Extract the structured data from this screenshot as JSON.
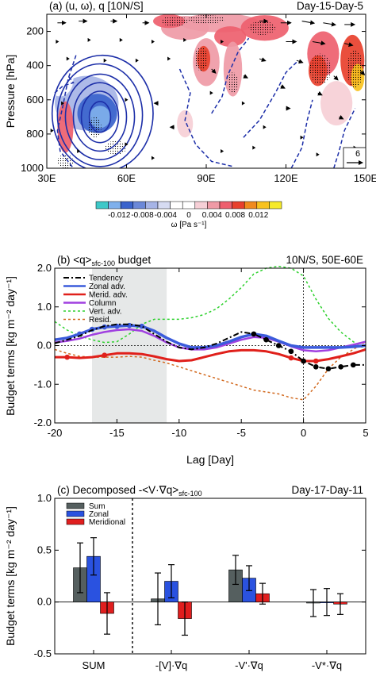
{
  "chart_data": [
    {
      "type": "contour",
      "title": "(a) (u, ω), q [10N/S]",
      "subtitle": "Day-15-Day-5",
      "xlabel": "",
      "ylabel": "Pressure [hPa]",
      "xlim": [
        30,
        150
      ],
      "ylim": [
        1000,
        100
      ],
      "xticks": [
        "30E",
        "60E",
        "90E",
        "120E",
        "150E"
      ],
      "xtick_values": [
        30,
        60,
        90,
        120,
        150
      ],
      "yticks": [
        "200",
        "400",
        "600",
        "800",
        "1000"
      ],
      "ytick_values": [
        200,
        400,
        600,
        800,
        1000
      ],
      "colorbar": {
        "label": "ω [Pa s⁻¹]",
        "tick_labels": [
          "-0.012",
          "-0.008",
          "-0.004",
          "0",
          "0.004",
          "0.008",
          "0.012"
        ],
        "colors": [
          "#3ec8c8",
          "#7fb0ec",
          "#3a63cc",
          "#6b88d8",
          "#a6b4e6",
          "#d6dbf2",
          "#ffffff",
          "#ffffff",
          "#f6cfd6",
          "#ef9aa6",
          "#ee5f6e",
          "#e8402d",
          "#f08a1e",
          "#f8c21e",
          "#f6ea2a"
        ]
      },
      "vector_reference": "6",
      "omega_cells": [
        {
          "lon": 45,
          "p": 620,
          "w_lon": 24,
          "h_p": 320,
          "value": -0.006
        },
        {
          "lon": 49,
          "p": 680,
          "w_lon": 15,
          "h_p": 230,
          "value": -0.009
        },
        {
          "lon": 50,
          "p": 700,
          "w_lon": 8,
          "h_p": 130,
          "value": -0.011
        },
        {
          "lon": 70,
          "p": 560,
          "w_lon": 16,
          "h_p": 260,
          "value": -0.002
        },
        {
          "lon": 35,
          "p": 480,
          "w_lon": 10,
          "h_p": 200,
          "value": -0.002
        },
        {
          "lon": 95,
          "p": 150,
          "w_lon": 30,
          "h_p": 110,
          "value": 0.005
        },
        {
          "lon": 82,
          "p": 180,
          "w_lon": 18,
          "h_p": 140,
          "value": 0.004
        },
        {
          "lon": 76,
          "p": 140,
          "w_lon": 12,
          "h_p": 80,
          "value": 0.006
        },
        {
          "lon": 99,
          "p": 230,
          "w_lon": 12,
          "h_p": 120,
          "value": 0.007
        },
        {
          "lon": 112,
          "p": 180,
          "w_lon": 18,
          "h_p": 150,
          "value": 0.006
        },
        {
          "lon": 90,
          "p": 380,
          "w_lon": 10,
          "h_p": 280,
          "value": 0.005
        },
        {
          "lon": 89,
          "p": 360,
          "w_lon": 5,
          "h_p": 150,
          "value": 0.009
        },
        {
          "lon": 100,
          "p": 420,
          "w_lon": 7,
          "h_p": 320,
          "value": 0.004
        },
        {
          "lon": 134,
          "p": 330,
          "w_lon": 12,
          "h_p": 260,
          "value": 0.006
        },
        {
          "lon": 132,
          "p": 430,
          "w_lon": 7,
          "h_p": 180,
          "value": 0.009
        },
        {
          "lon": 145,
          "p": 370,
          "w_lon": 9,
          "h_p": 300,
          "value": 0.008
        },
        {
          "lon": 147,
          "p": 470,
          "w_lon": 5,
          "h_p": 160,
          "value": 0.012
        },
        {
          "lon": 139,
          "p": 620,
          "w_lon": 12,
          "h_p": 260,
          "value": 0.003
        },
        {
          "lon": 37,
          "p": 760,
          "w_lon": 6,
          "h_p": 300,
          "value": 0.006
        },
        {
          "lon": 82,
          "p": 740,
          "w_lon": 6,
          "h_p": 160,
          "value": 0.003
        }
      ],
      "q_contours": [
        {
          "lon": 50,
          "p": 700,
          "r_lon": 4,
          "r_p": 90
        },
        {
          "lon": 50,
          "p": 700,
          "r_lon": 7,
          "r_p": 150
        },
        {
          "lon": 50,
          "p": 700,
          "r_lon": 10,
          "r_p": 200
        },
        {
          "lon": 50,
          "p": 700,
          "r_lon": 13,
          "r_p": 250
        },
        {
          "lon": 50,
          "p": 690,
          "r_lon": 16,
          "r_p": 300
        },
        {
          "lon": 51,
          "p": 680,
          "r_lon": 19,
          "r_p": 340
        }
      ],
      "q_negative_contours": [
        {
          "points": [
            [
              41,
              340
            ],
            [
              38,
              480
            ],
            [
              36,
              640
            ],
            [
              34,
              780
            ],
            [
              35,
              900
            ],
            [
              40,
              1000
            ]
          ]
        },
        {
          "points": [
            [
              33,
              560
            ],
            [
              36,
              520
            ],
            [
              40,
              500
            ],
            [
              38,
              460
            ]
          ]
        },
        {
          "points": [
            [
              80,
              420
            ],
            [
              84,
              560
            ],
            [
              82,
              720
            ],
            [
              86,
              860
            ],
            [
              92,
              960
            ],
            [
              100,
              990
            ]
          ]
        },
        {
          "points": [
            [
              92,
              680
            ],
            [
              96,
              580
            ],
            [
              98,
              460
            ],
            [
              102,
              320
            ],
            [
              106,
              240
            ]
          ]
        },
        {
          "points": [
            [
              104,
              820
            ],
            [
              110,
              720
            ],
            [
              116,
              560
            ],
            [
              120,
              440
            ],
            [
              124,
              380
            ]
          ]
        },
        {
          "points": [
            [
              122,
              1000
            ],
            [
              126,
              880
            ],
            [
              128,
              720
            ],
            [
              130,
              600
            ]
          ]
        },
        {
          "points": [
            [
              138,
              1000
            ],
            [
              140,
              900
            ],
            [
              142,
              780
            ],
            [
              146,
              650
            ]
          ]
        }
      ],
      "wind_vectors": [
        {
          "lon": 34,
          "p": 150,
          "u": 4,
          "w": 0
        },
        {
          "lon": 42,
          "p": 140,
          "u": 4,
          "w": 0
        },
        {
          "lon": 54,
          "p": 140,
          "u": 3,
          "w": 0
        },
        {
          "lon": 66,
          "p": 150,
          "u": 3,
          "w": 0
        },
        {
          "lon": 110,
          "p": 140,
          "u": 4,
          "w": 0
        },
        {
          "lon": 118,
          "p": 150,
          "u": 5,
          "w": 0
        },
        {
          "lon": 126,
          "p": 140,
          "u": 6,
          "w": 1
        },
        {
          "lon": 134,
          "p": 150,
          "u": 6,
          "w": 1
        },
        {
          "lon": 142,
          "p": 160,
          "u": 5,
          "w": 0
        },
        {
          "lon": 120,
          "p": 260,
          "u": 5,
          "w": 0
        },
        {
          "lon": 130,
          "p": 260,
          "u": 6,
          "w": 1
        },
        {
          "lon": 142,
          "p": 270,
          "u": 4,
          "w": 1
        },
        {
          "lon": 110,
          "p": 360,
          "u": 3,
          "w": 1
        },
        {
          "lon": 124,
          "p": 370,
          "u": 3,
          "w": 1
        },
        {
          "lon": 92,
          "p": 420,
          "u": 2,
          "w": 2
        },
        {
          "lon": 104,
          "p": 460,
          "u": 2,
          "w": 1
        },
        {
          "lon": 138,
          "p": 460,
          "u": 2,
          "w": 2
        },
        {
          "lon": 148,
          "p": 430,
          "u": 2,
          "w": 2
        },
        {
          "lon": 118,
          "p": 520,
          "u": 2,
          "w": 1
        },
        {
          "lon": 132,
          "p": 560,
          "u": 2,
          "w": 1
        },
        {
          "lon": 120,
          "p": 650,
          "u": 2,
          "w": 0
        },
        {
          "lon": 140,
          "p": 700,
          "u": 2,
          "w": 1
        },
        {
          "lon": 72,
          "p": 620,
          "u": -2,
          "w": 0
        },
        {
          "lon": 78,
          "p": 760,
          "u": -2,
          "w": 0
        }
      ],
      "wind_marks": [
        {
          "lon": 34,
          "p": 260
        },
        {
          "lon": 46,
          "p": 250
        },
        {
          "lon": 58,
          "p": 250
        },
        {
          "lon": 70,
          "p": 260
        },
        {
          "lon": 82,
          "p": 250
        },
        {
          "lon": 96,
          "p": 260
        },
        {
          "lon": 38,
          "p": 360
        },
        {
          "lon": 52,
          "p": 370
        },
        {
          "lon": 64,
          "p": 370
        },
        {
          "lon": 76,
          "p": 360
        },
        {
          "lon": 36,
          "p": 620
        },
        {
          "lon": 60,
          "p": 600
        },
        {
          "lon": 92,
          "p": 560
        },
        {
          "lon": 104,
          "p": 620
        },
        {
          "lon": 112,
          "p": 760
        },
        {
          "lon": 126,
          "p": 820
        },
        {
          "lon": 60,
          "p": 860
        },
        {
          "lon": 96,
          "p": 900
        },
        {
          "lon": 42,
          "p": 900
        },
        {
          "lon": 70,
          "p": 940
        },
        {
          "lon": 108,
          "p": 880
        },
        {
          "lon": 132,
          "p": 920
        },
        {
          "lon": 146,
          "p": 880
        },
        {
          "lon": 32,
          "p": 780
        }
      ],
      "stipple_regions": [
        {
          "lon": 78,
          "p": 140,
          "w_lon": 10,
          "h_p": 60
        },
        {
          "lon": 90,
          "p": 130,
          "w_lon": 14,
          "h_p": 50
        },
        {
          "lon": 111,
          "p": 180,
          "w_lon": 10,
          "h_p": 80
        },
        {
          "lon": 88,
          "p": 360,
          "w_lon": 5,
          "h_p": 140
        },
        {
          "lon": 133,
          "p": 420,
          "w_lon": 8,
          "h_p": 180
        },
        {
          "lon": 146,
          "p": 420,
          "w_lon": 6,
          "h_p": 220
        },
        {
          "lon": 37,
          "p": 960,
          "w_lon": 6,
          "h_p": 80
        },
        {
          "lon": 48,
          "p": 760,
          "w_lon": 5,
          "h_p": 120
        },
        {
          "lon": 56,
          "p": 880,
          "w_lon": 8,
          "h_p": 80
        },
        {
          "lon": 100,
          "p": 500,
          "w_lon": 4,
          "h_p": 120
        }
      ]
    },
    {
      "type": "line",
      "title": "(b) <q>",
      "title_subscript": "sfc-100",
      "title_suffix": " budget",
      "subtitle": "10N/S, 50E-60E",
      "xlabel": "Lag [Day]",
      "ylabel": "Budget terms [kg m⁻² day⁻¹]",
      "xlim": [
        -20,
        5
      ],
      "ylim": [
        -2.0,
        2.0
      ],
      "xticks": [
        "-20",
        "-15",
        "-10",
        "-5",
        "0",
        "5"
      ],
      "xtick_values": [
        -20,
        -15,
        -10,
        -5,
        0,
        5
      ],
      "yticks": [
        "-2.0",
        "-1.0",
        "0.0",
        "1.0",
        "2.0"
      ],
      "ytick_values": [
        -2,
        -1,
        0,
        1,
        2
      ],
      "shaded_range": [
        -17,
        -11
      ],
      "vertical_line_x": 0,
      "legend_position": "top-left",
      "x": [
        -20,
        -19,
        -18,
        -17,
        -16,
        -15,
        -14,
        -13,
        -12,
        -11,
        -10,
        -9,
        -8,
        -7,
        -6,
        -5,
        -4,
        -3,
        -2,
        -1,
        0,
        1,
        2,
        3,
        4,
        5
      ],
      "series": [
        {
          "name": "Tendency",
          "color": "#000000",
          "dash": "7,3,2,3",
          "width": 2,
          "markers": true,
          "values": [
            0.06,
            0.15,
            0.25,
            0.4,
            0.5,
            0.55,
            0.55,
            0.5,
            0.3,
            0.1,
            -0.05,
            -0.1,
            -0.05,
            0.05,
            0.2,
            0.35,
            0.3,
            0.15,
            0.0,
            -0.15,
            -0.4,
            -0.55,
            -0.6,
            -0.55,
            -0.5,
            -0.5
          ]
        },
        {
          "name": "Zonal adv.",
          "color": "#3b5bdb",
          "dash": "",
          "width": 3.5,
          "markers": true,
          "values": [
            0.15,
            0.2,
            0.3,
            0.42,
            0.48,
            0.5,
            0.52,
            0.5,
            0.38,
            0.2,
            0.05,
            -0.05,
            -0.05,
            0.0,
            0.1,
            0.22,
            0.3,
            0.25,
            0.12,
            0.0,
            -0.05,
            -0.05,
            -0.05,
            -0.05,
            -0.03,
            0.0
          ]
        },
        {
          "name": "Merid. adv.",
          "color": "#e0201b",
          "dash": "",
          "width": 3,
          "markers": true,
          "values": [
            -0.3,
            -0.3,
            -0.32,
            -0.3,
            -0.25,
            -0.2,
            -0.2,
            -0.22,
            -0.28,
            -0.35,
            -0.4,
            -0.38,
            -0.3,
            -0.22,
            -0.15,
            -0.12,
            -0.12,
            -0.15,
            -0.22,
            -0.32,
            -0.4,
            -0.4,
            -0.35,
            -0.28,
            -0.2,
            -0.1
          ]
        },
        {
          "name": "Column",
          "color": "#a040e0",
          "dash": "",
          "width": 2.5,
          "markers": false,
          "values": [
            0.08,
            0.12,
            0.18,
            0.28,
            0.35,
            0.4,
            0.42,
            0.38,
            0.25,
            0.08,
            -0.05,
            -0.1,
            -0.1,
            -0.05,
            0.05,
            0.15,
            0.22,
            0.2,
            0.1,
            -0.02,
            -0.12,
            -0.15,
            -0.12,
            -0.05,
            0.02,
            0.1
          ]
        },
        {
          "name": "Vert. adv.",
          "color": "#2ed12e",
          "dash": "3,3",
          "width": 1.5,
          "markers": false,
          "values": [
            0.62,
            0.4,
            0.25,
            0.15,
            0.08,
            0.1,
            0.3,
            0.55,
            0.68,
            0.68,
            0.68,
            0.72,
            0.8,
            0.95,
            1.2,
            1.5,
            1.85,
            2.0,
            2.05,
            2.0,
            1.8,
            1.2,
            0.7,
            0.35,
            0.1,
            -0.1
          ]
        },
        {
          "name": "Resid.",
          "color": "#d2691e",
          "dash": "3,3",
          "width": 1.5,
          "markers": false,
          "values": [
            -0.1,
            -0.2,
            -0.28,
            -0.3,
            -0.3,
            -0.3,
            -0.28,
            -0.3,
            -0.38,
            -0.45,
            -0.55,
            -0.65,
            -0.75,
            -0.85,
            -0.95,
            -1.05,
            -1.15,
            -1.2,
            -1.25,
            -1.35,
            -1.4,
            -1.05,
            -0.6,
            -0.3,
            -0.1,
            0.1
          ]
        }
      ]
    },
    {
      "type": "bar",
      "title": "(c) Decomposed -<V·∇q>",
      "title_subscript": "sfc-100",
      "subtitle": "Day-17-Day-11",
      "xlabel": "",
      "ylabel": "Budget terms [kg m⁻² day⁻¹]",
      "ylim": [
        -0.5,
        1.0
      ],
      "yticks": [
        "-0.5",
        "0.0",
        "0.5",
        "1.0"
      ],
      "ytick_values": [
        -0.5,
        0,
        0.5,
        1.0
      ],
      "categories": [
        "SUM",
        "-[V]·∇q",
        "-V'·∇q",
        "-V*·∇q"
      ],
      "divider_after_category": 0,
      "legend_position": "top-left",
      "series": [
        {
          "name": "Sum",
          "color": "#555f5f",
          "values": [
            0.33,
            0.03,
            0.31,
            -0.01
          ],
          "err": [
            0.24,
            0.25,
            0.14,
            0.13
          ]
        },
        {
          "name": "Zonal",
          "color": "#2a52e0",
          "values": [
            0.44,
            0.2,
            0.23,
            0.0
          ],
          "err": [
            0.18,
            0.16,
            0.12,
            0.13
          ]
        },
        {
          "name": "Meridional",
          "color": "#e01e1e",
          "values": [
            -0.11,
            -0.16,
            0.08,
            -0.02
          ],
          "err": [
            0.2,
            0.16,
            0.1,
            0.1
          ]
        }
      ]
    }
  ]
}
